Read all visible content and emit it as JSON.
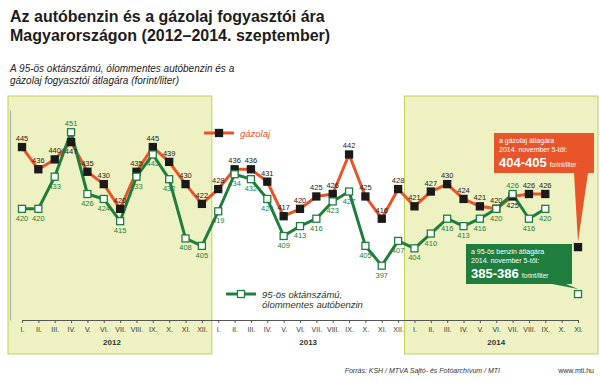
{
  "chart_data": {
    "type": "line",
    "title": "Az autóbenzin és a gázolaj fogyasztói ára Magyarországon (2012–2014. szeptember)",
    "subtitle": "A 95-ös oktánszámú, ólommentes autóbenzin és a gázolaj fogyasztói átlagára (forint/liter)",
    "categories": [
      "I.",
      "II.",
      "III.",
      "IV.",
      "V.",
      "VI.",
      "VII.",
      "VIII.",
      "IX.",
      "X.",
      "XI.",
      "XII.",
      "I.",
      "II.",
      "III.",
      "IV.",
      "V.",
      "VI.",
      "VII.",
      "VIII.",
      "IX.",
      "X.",
      "XI.",
      "XII.",
      "I.",
      "II.",
      "III.",
      "IV.",
      "V.",
      "VI.",
      "VII.",
      "VIII.",
      "IX.",
      "X.",
      "XI."
    ],
    "years": [
      "2012",
      "2013",
      "2014"
    ],
    "series": [
      {
        "name": "gázolaj",
        "color": "#e8552b",
        "marker": "square",
        "values": [
          445,
          436,
          440,
          447,
          435,
          430,
          420,
          435,
          445,
          439,
          430,
          422,
          428,
          436,
          436,
          431,
          417,
          420,
          425,
          426,
          442,
          425,
          416,
          428,
          421,
          427,
          430,
          424,
          421,
          420,
          425,
          426,
          426,
          null,
          404.5
        ],
        "value_labels": [
          "445",
          "436",
          "440",
          "447",
          "435",
          "430",
          "420",
          "435",
          "445",
          "439",
          "430",
          "422",
          "428",
          "436",
          "436",
          "431",
          "417",
          "420",
          "425",
          "426",
          "442",
          "425",
          "416",
          "428",
          "421",
          "427",
          "430",
          "424",
          "421",
          "420",
          "425",
          "426",
          "426",
          null,
          null
        ],
        "note": {
          "lines": [
            "a gázolaj átlagára",
            "2014. november 5-től:"
          ],
          "highlight": "404-405",
          "unit": "forint/liter"
        }
      },
      {
        "name": "95-ös oktánszámú, ólommentes autóbenzin",
        "color": "#1f7d3e",
        "marker": "square-open",
        "values": [
          420,
          420,
          433,
          451,
          426,
          424,
          415,
          433,
          442,
          432,
          408,
          405,
          419,
          434,
          432,
          424,
          409,
          413,
          416,
          423,
          427,
          405,
          397,
          407,
          404,
          410,
          416,
          413,
          416,
          420,
          426,
          416,
          420,
          null,
          385.5
        ],
        "value_labels": [
          "420",
          "420",
          "433",
          "451",
          "426",
          "424",
          "415",
          "433",
          "442",
          "432",
          "408",
          "405",
          "419",
          "434",
          "432",
          "424",
          "409",
          "413",
          "416",
          "423",
          "427",
          "405",
          "397",
          "407",
          "404",
          "410",
          "416",
          "413",
          "416",
          "420",
          "426",
          "416",
          "420",
          null,
          null
        ],
        "note": {
          "lines": [
            "a 95-ös benzin átlagára",
            "2014. november 5-től:"
          ],
          "highlight": "385-386",
          "unit": "forint/liter"
        }
      }
    ],
    "ylim": [
      375,
      460
    ],
    "yticks": [],
    "tick_labels": "x",
    "grid": false,
    "data_labels": true,
    "source": "Forrás: KSH / MTVA Sajtó- és Fotóarchívum / MTI",
    "website": "www.mti.hu"
  }
}
